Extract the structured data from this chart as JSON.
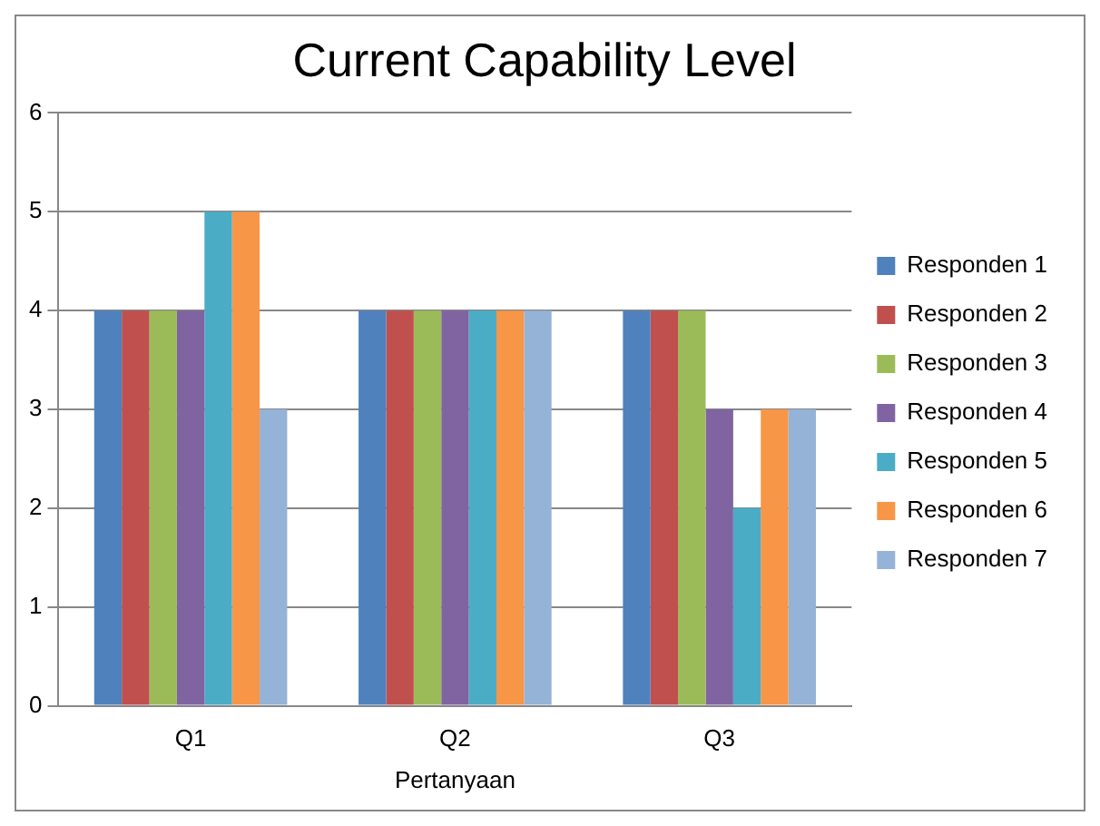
{
  "chart_data": {
    "type": "bar",
    "title": "Current Capability Level",
    "xlabel": "Pertanyaan",
    "categories": [
      "Q1",
      "Q2",
      "Q3"
    ],
    "series": [
      {
        "name": "Responden 1",
        "color": "#4f81bd",
        "values": [
          4,
          4,
          4
        ]
      },
      {
        "name": "Responden 2",
        "color": "#c0504d",
        "values": [
          4,
          4,
          4
        ]
      },
      {
        "name": "Responden 3",
        "color": "#9bbb59",
        "values": [
          4,
          4,
          4
        ]
      },
      {
        "name": "Responden 4",
        "color": "#8064a2",
        "values": [
          4,
          4,
          3
        ]
      },
      {
        "name": "Responden 5",
        "color": "#4bacc6",
        "values": [
          5,
          4,
          2
        ]
      },
      {
        "name": "Responden 6",
        "color": "#f79646",
        "values": [
          5,
          4,
          3
        ]
      },
      {
        "name": "Responden 7",
        "color": "#95b3d7",
        "values": [
          3,
          4,
          3
        ]
      }
    ],
    "ylim": [
      0,
      6
    ],
    "yticks": [
      0,
      1,
      2,
      3,
      4,
      5,
      6
    ],
    "grid": "y",
    "legend": "right"
  }
}
